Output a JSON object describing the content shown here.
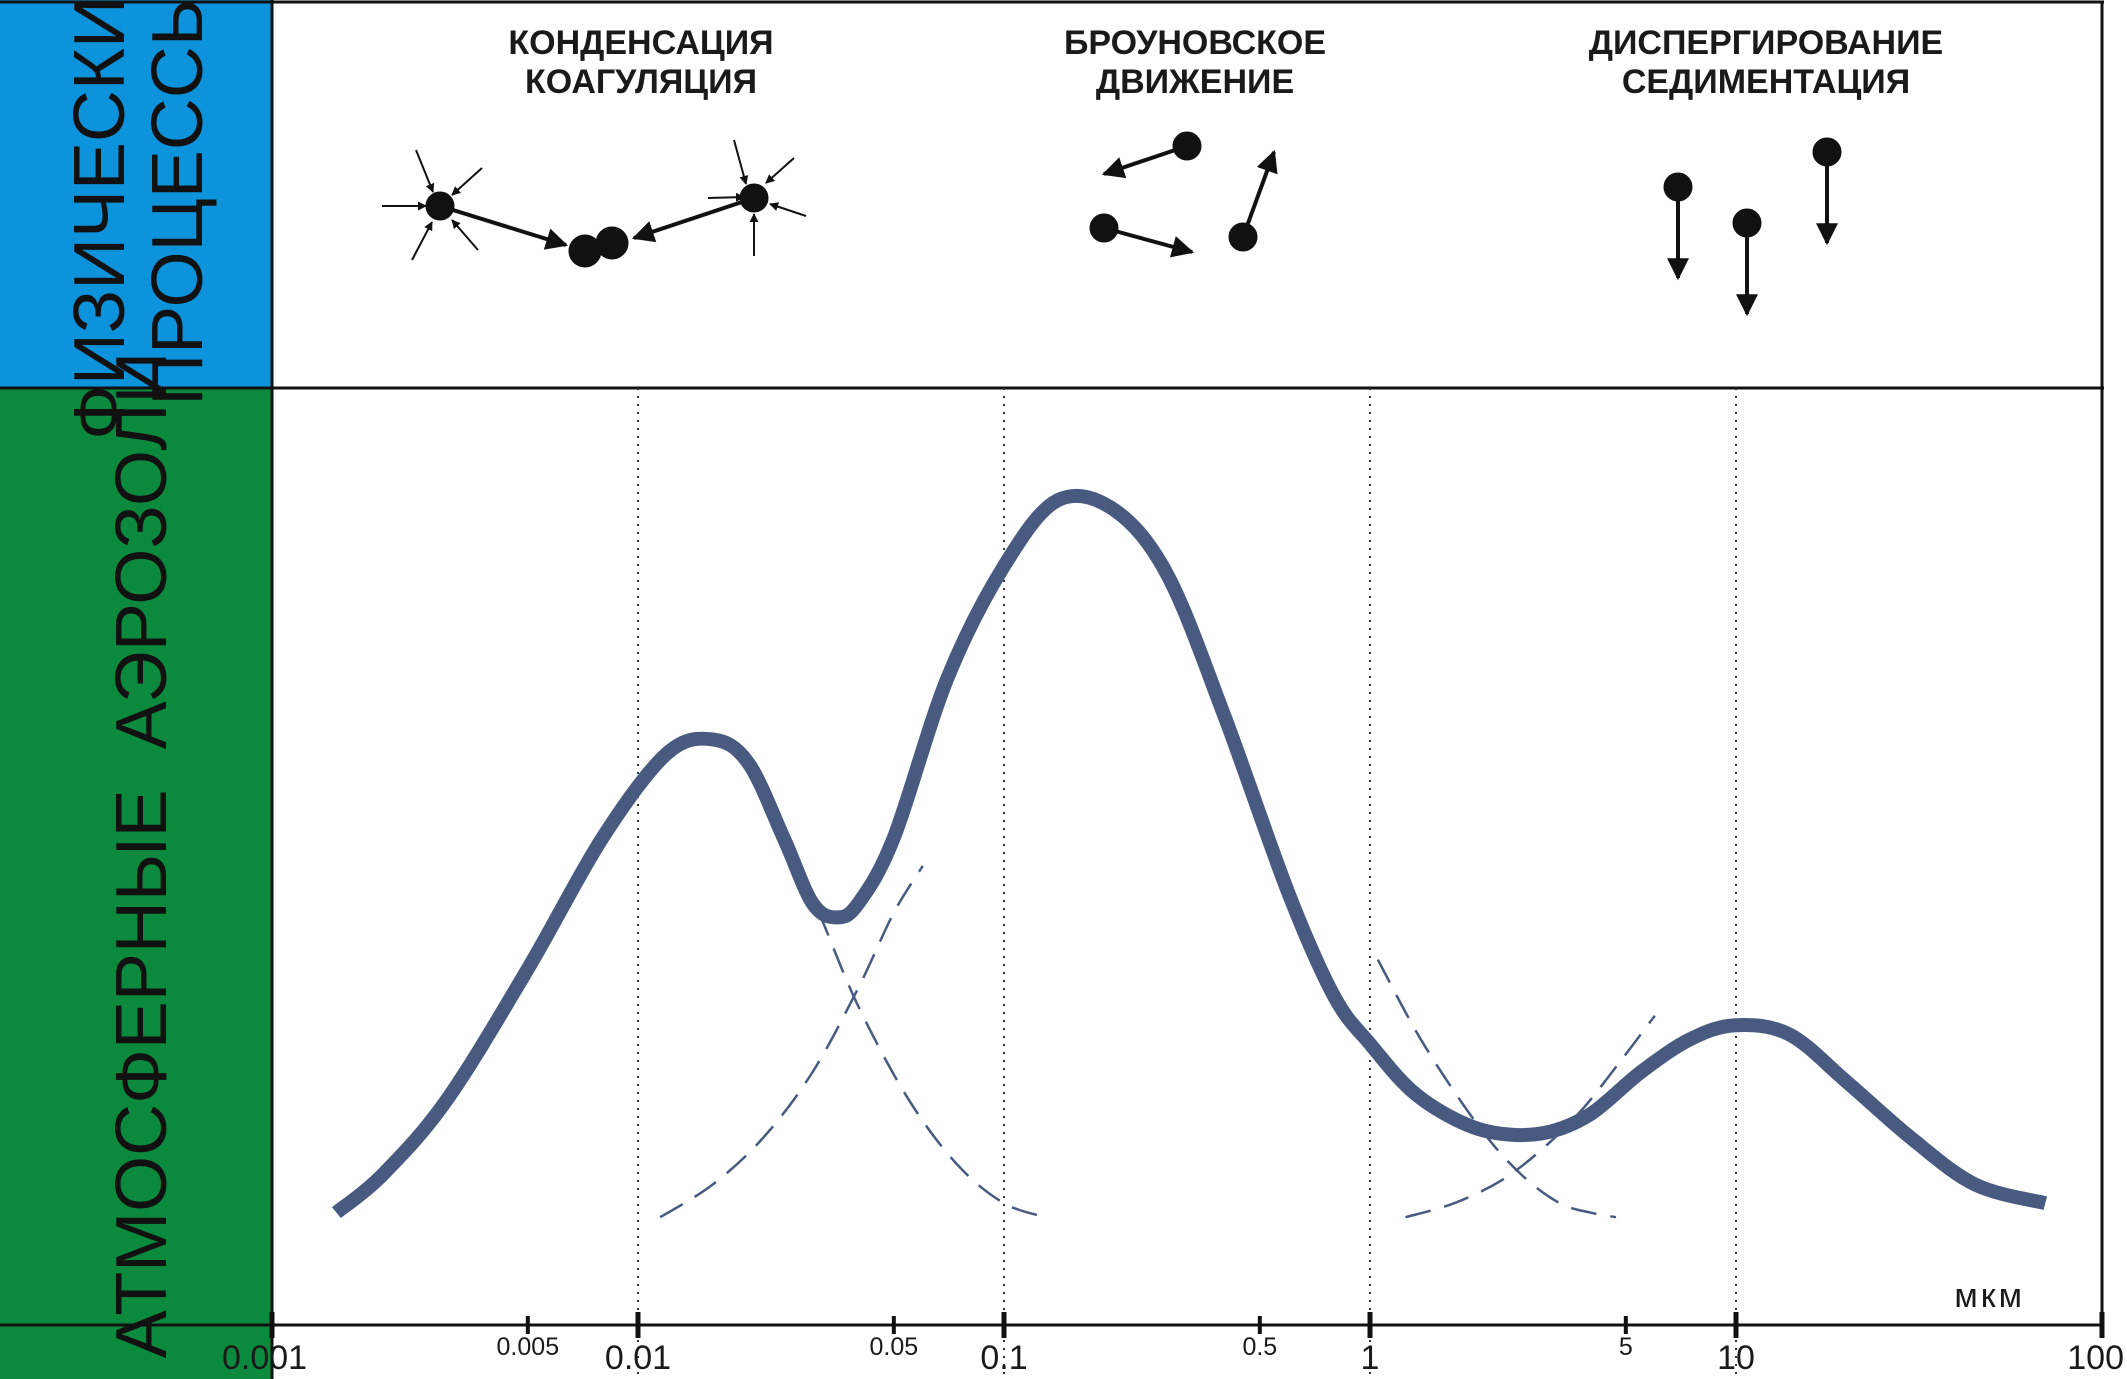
{
  "side_labels": {
    "top": [
      "ФИЗИЧЕСКИЕ",
      "ПРОЦЕССЫ"
    ],
    "bottom": "АТМОСФЕРНЫЕ  АЭРОЗОЛИ"
  },
  "processes": [
    {
      "lines": [
        "КОНДЕНСАЦИЯ",
        "КОАГУЛЯЦИЯ"
      ],
      "icon": "condensation-coagulation-icon"
    },
    {
      "lines": [
        "БРОУНОВСКОЕ",
        "ДВИЖЕНИЕ"
      ],
      "icon": "brownian-motion-icon"
    },
    {
      "lines": [
        "ДИСПЕРГИРОВАНИЕ",
        "СЕДИМЕНТАЦИЯ"
      ],
      "icon": "sedimentation-icon"
    }
  ],
  "colors": {
    "top_band": "#0c93dc",
    "bottom_band": "#0b8a3e",
    "curve": "#485a80",
    "ink": "#111111"
  },
  "chart_data": {
    "type": "line",
    "x_scale": "log",
    "xlabel": "мкм",
    "xlim": [
      0.001,
      100
    ],
    "major_ticks": [
      {
        "value": 0.001,
        "label": "0.001"
      },
      {
        "value": 0.01,
        "label": "0.01"
      },
      {
        "value": 0.1,
        "label": "0.1"
      },
      {
        "value": 1,
        "label": "1"
      },
      {
        "value": 10,
        "label": "10"
      },
      {
        "value": 100,
        "label": "100"
      }
    ],
    "minor_ticks": [
      {
        "value": 0.005,
        "label": "0.005"
      },
      {
        "value": 0.05,
        "label": "0.05"
      },
      {
        "value": 0.5,
        "label": "0.5"
      },
      {
        "value": 5,
        "label": "5"
      }
    ],
    "dotted_gridlines_at": [
      0.01,
      0.1,
      1,
      10
    ],
    "ylim": [
      0,
      1
    ],
    "series": [
      {
        "style": "solid",
        "x": [
          0.0015,
          0.002,
          0.003,
          0.005,
          0.008,
          0.012,
          0.016,
          0.02,
          0.025,
          0.03,
          0.035,
          0.04,
          0.05,
          0.07,
          0.1,
          0.14,
          0.2,
          0.28,
          0.4,
          0.6,
          0.8,
          1.0,
          1.3,
          1.7,
          2.2,
          3,
          4,
          5.5,
          7.5,
          10,
          14,
          20,
          30,
          45,
          70
        ],
        "y": [
          0.12,
          0.16,
          0.24,
          0.38,
          0.52,
          0.61,
          0.625,
          0.6,
          0.52,
          0.45,
          0.435,
          0.45,
          0.52,
          0.69,
          0.81,
          0.88,
          0.87,
          0.8,
          0.65,
          0.46,
          0.35,
          0.3,
          0.25,
          0.22,
          0.205,
          0.205,
          0.225,
          0.27,
          0.305,
          0.32,
          0.31,
          0.26,
          0.2,
          0.15,
          0.13
        ]
      },
      {
        "style": "dashed",
        "x": [
          0.028,
          0.032,
          0.04,
          0.055,
          0.075,
          0.1,
          0.13
        ],
        "y": [
          0.48,
          0.43,
          0.34,
          0.24,
          0.17,
          0.13,
          0.115
        ]
      },
      {
        "style": "dashed",
        "x": [
          0.0115,
          0.016,
          0.022,
          0.03,
          0.04,
          0.05,
          0.06
        ],
        "y": [
          0.115,
          0.15,
          0.2,
          0.27,
          0.36,
          0.44,
          0.49
        ]
      },
      {
        "style": "dashed",
        "x": [
          1.05,
          1.4,
          2,
          2.6,
          3.3,
          4,
          4.7
        ],
        "y": [
          0.39,
          0.3,
          0.21,
          0.16,
          0.13,
          0.12,
          0.115
        ]
      },
      {
        "style": "dashed",
        "x": [
          1.25,
          1.7,
          2.3,
          3,
          3.8,
          4.8,
          6
        ],
        "y": [
          0.115,
          0.13,
          0.155,
          0.19,
          0.23,
          0.28,
          0.33
        ]
      }
    ]
  }
}
